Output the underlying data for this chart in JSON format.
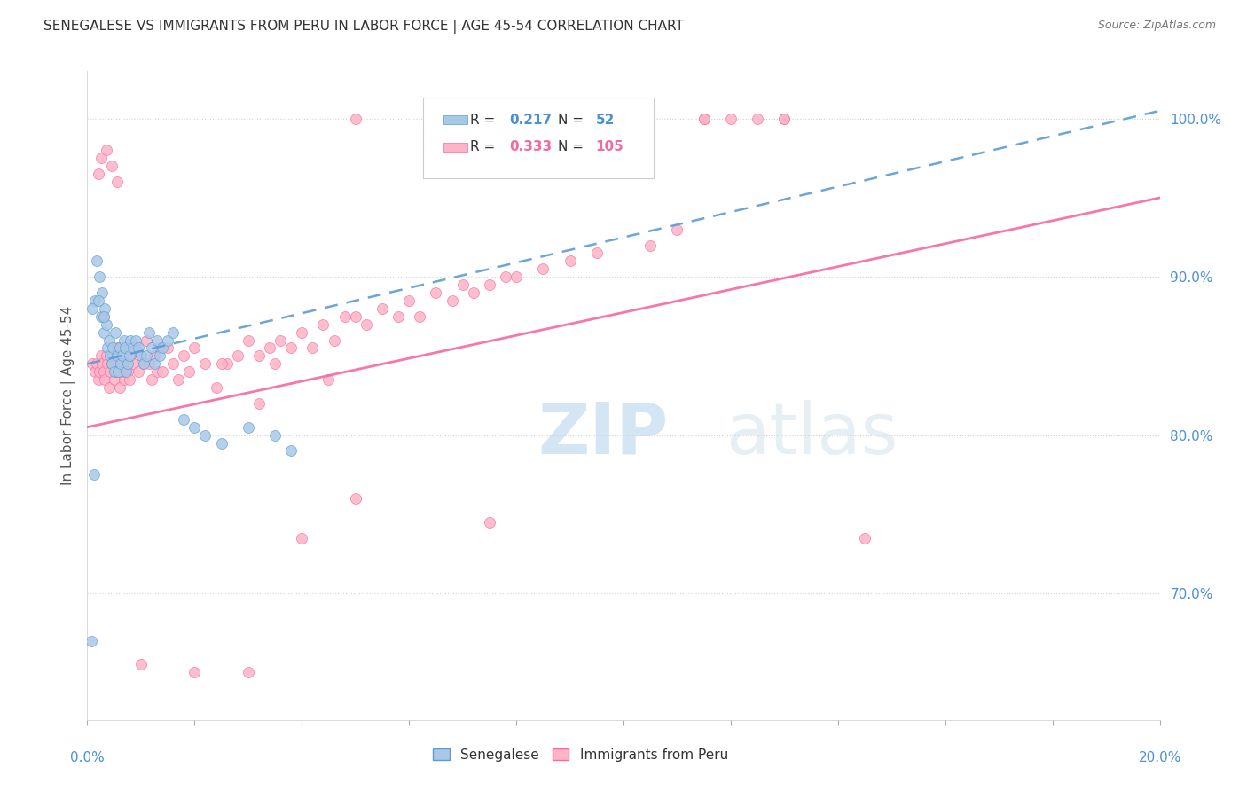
{
  "title": "SENEGALESE VS IMMIGRANTS FROM PERU IN LABOR FORCE | AGE 45-54 CORRELATION CHART",
  "source": "Source: ZipAtlas.com",
  "ylabel": "In Labor Force | Age 45-54",
  "right_yticks": [
    70.0,
    80.0,
    90.0,
    100.0
  ],
  "legend_blue_label": "Senegalese",
  "legend_pink_label": "Immigrants from Peru",
  "R_blue": 0.217,
  "N_blue": 52,
  "R_pink": 0.333,
  "N_pink": 105,
  "blue_color": "#a8c8e8",
  "blue_edge_color": "#5b9bd5",
  "pink_color": "#ffb3c6",
  "pink_edge_color": "#f768a1",
  "blue_line_color": "#5b9bd5",
  "pink_line_color": "#f768a1",
  "title_color": "#333333",
  "axis_label_color": "#4a90d9",
  "watermark_color": "#d5e8f5",
  "xmin": 0.0,
  "xmax": 20.0,
  "ymin": 62.0,
  "ymax": 103.0,
  "blue_line_x0": 0.0,
  "blue_line_y0": 84.5,
  "blue_line_x1": 20.0,
  "blue_line_y1": 100.5,
  "pink_line_x0": 0.0,
  "pink_line_y0": 80.5,
  "pink_line_x1": 20.0,
  "pink_line_y1": 95.0,
  "blue_x": [
    0.15,
    0.18,
    0.22,
    0.25,
    0.28,
    0.3,
    0.32,
    0.35,
    0.38,
    0.4,
    0.42,
    0.45,
    0.48,
    0.5,
    0.52,
    0.55,
    0.58,
    0.6,
    0.62,
    0.65,
    0.68,
    0.7,
    0.72,
    0.75,
    0.78,
    0.8,
    0.85,
    0.9,
    0.95,
    1.0,
    1.05,
    1.1,
    1.15,
    1.2,
    1.25,
    1.3,
    1.35,
    1.4,
    1.5,
    1.6,
    1.8,
    2.0,
    2.2,
    2.5,
    3.0,
    3.5,
    3.8,
    0.1,
    0.2,
    0.3,
    0.12,
    0.08
  ],
  "blue_y": [
    88.5,
    91.0,
    90.0,
    87.5,
    89.0,
    86.5,
    88.0,
    87.0,
    85.5,
    86.0,
    85.0,
    84.5,
    85.5,
    84.0,
    86.5,
    85.0,
    84.0,
    85.5,
    84.5,
    85.0,
    86.0,
    85.5,
    84.0,
    84.5,
    85.0,
    86.0,
    85.5,
    86.0,
    85.5,
    85.0,
    84.5,
    85.0,
    86.5,
    85.5,
    84.5,
    86.0,
    85.0,
    85.5,
    86.0,
    86.5,
    81.0,
    80.5,
    80.0,
    79.5,
    80.5,
    80.0,
    79.0,
    88.0,
    88.5,
    87.5,
    77.5,
    67.0
  ],
  "pink_x": [
    0.1,
    0.15,
    0.18,
    0.2,
    0.22,
    0.25,
    0.28,
    0.3,
    0.32,
    0.35,
    0.38,
    0.4,
    0.42,
    0.45,
    0.48,
    0.5,
    0.52,
    0.55,
    0.58,
    0.6,
    0.62,
    0.65,
    0.68,
    0.7,
    0.72,
    0.75,
    0.78,
    0.8,
    0.85,
    0.9,
    0.95,
    1.0,
    1.05,
    1.1,
    1.15,
    1.2,
    1.25,
    1.3,
    1.35,
    1.4,
    1.5,
    1.6,
    1.7,
    1.8,
    1.9,
    2.0,
    2.2,
    2.4,
    2.6,
    2.8,
    3.0,
    3.2,
    3.4,
    3.5,
    3.6,
    3.8,
    4.0,
    4.2,
    4.4,
    4.6,
    4.8,
    5.0,
    5.2,
    5.5,
    5.8,
    6.0,
    6.2,
    6.5,
    6.8,
    7.0,
    7.2,
    7.5,
    7.8,
    8.0,
    8.5,
    9.0,
    9.5,
    10.5,
    11.0,
    11.5,
    12.0,
    12.5,
    13.0,
    14.5,
    1.0,
    2.0,
    3.0,
    4.0,
    5.0,
    7.0,
    9.0,
    11.5,
    13.0,
    0.25,
    0.35,
    0.45,
    0.55,
    5.0,
    7.5,
    0.2,
    3.2,
    4.5,
    0.3,
    2.5,
    0.6
  ],
  "pink_y": [
    84.5,
    84.0,
    84.5,
    83.5,
    84.0,
    85.0,
    84.5,
    84.0,
    83.5,
    85.0,
    84.5,
    83.0,
    84.0,
    84.5,
    85.0,
    83.5,
    84.0,
    85.5,
    84.5,
    83.0,
    85.0,
    84.5,
    83.5,
    84.0,
    85.5,
    84.0,
    83.5,
    85.0,
    84.5,
    85.5,
    84.0,
    85.0,
    84.5,
    86.0,
    84.5,
    83.5,
    85.0,
    84.0,
    85.5,
    84.0,
    85.5,
    84.5,
    83.5,
    85.0,
    84.0,
    85.5,
    84.5,
    83.0,
    84.5,
    85.0,
    86.0,
    85.0,
    85.5,
    84.5,
    86.0,
    85.5,
    86.5,
    85.5,
    87.0,
    86.0,
    87.5,
    87.5,
    87.0,
    88.0,
    87.5,
    88.5,
    87.5,
    89.0,
    88.5,
    89.5,
    89.0,
    89.5,
    90.0,
    90.0,
    90.5,
    91.0,
    91.5,
    92.0,
    93.0,
    100.0,
    100.0,
    100.0,
    100.0,
    73.5,
    65.5,
    65.0,
    65.0,
    73.5,
    100.0,
    100.0,
    100.0,
    100.0,
    100.0,
    97.5,
    98.0,
    97.0,
    96.0,
    76.0,
    74.5,
    96.5,
    82.0,
    83.5,
    87.5,
    84.5,
    84.0
  ]
}
